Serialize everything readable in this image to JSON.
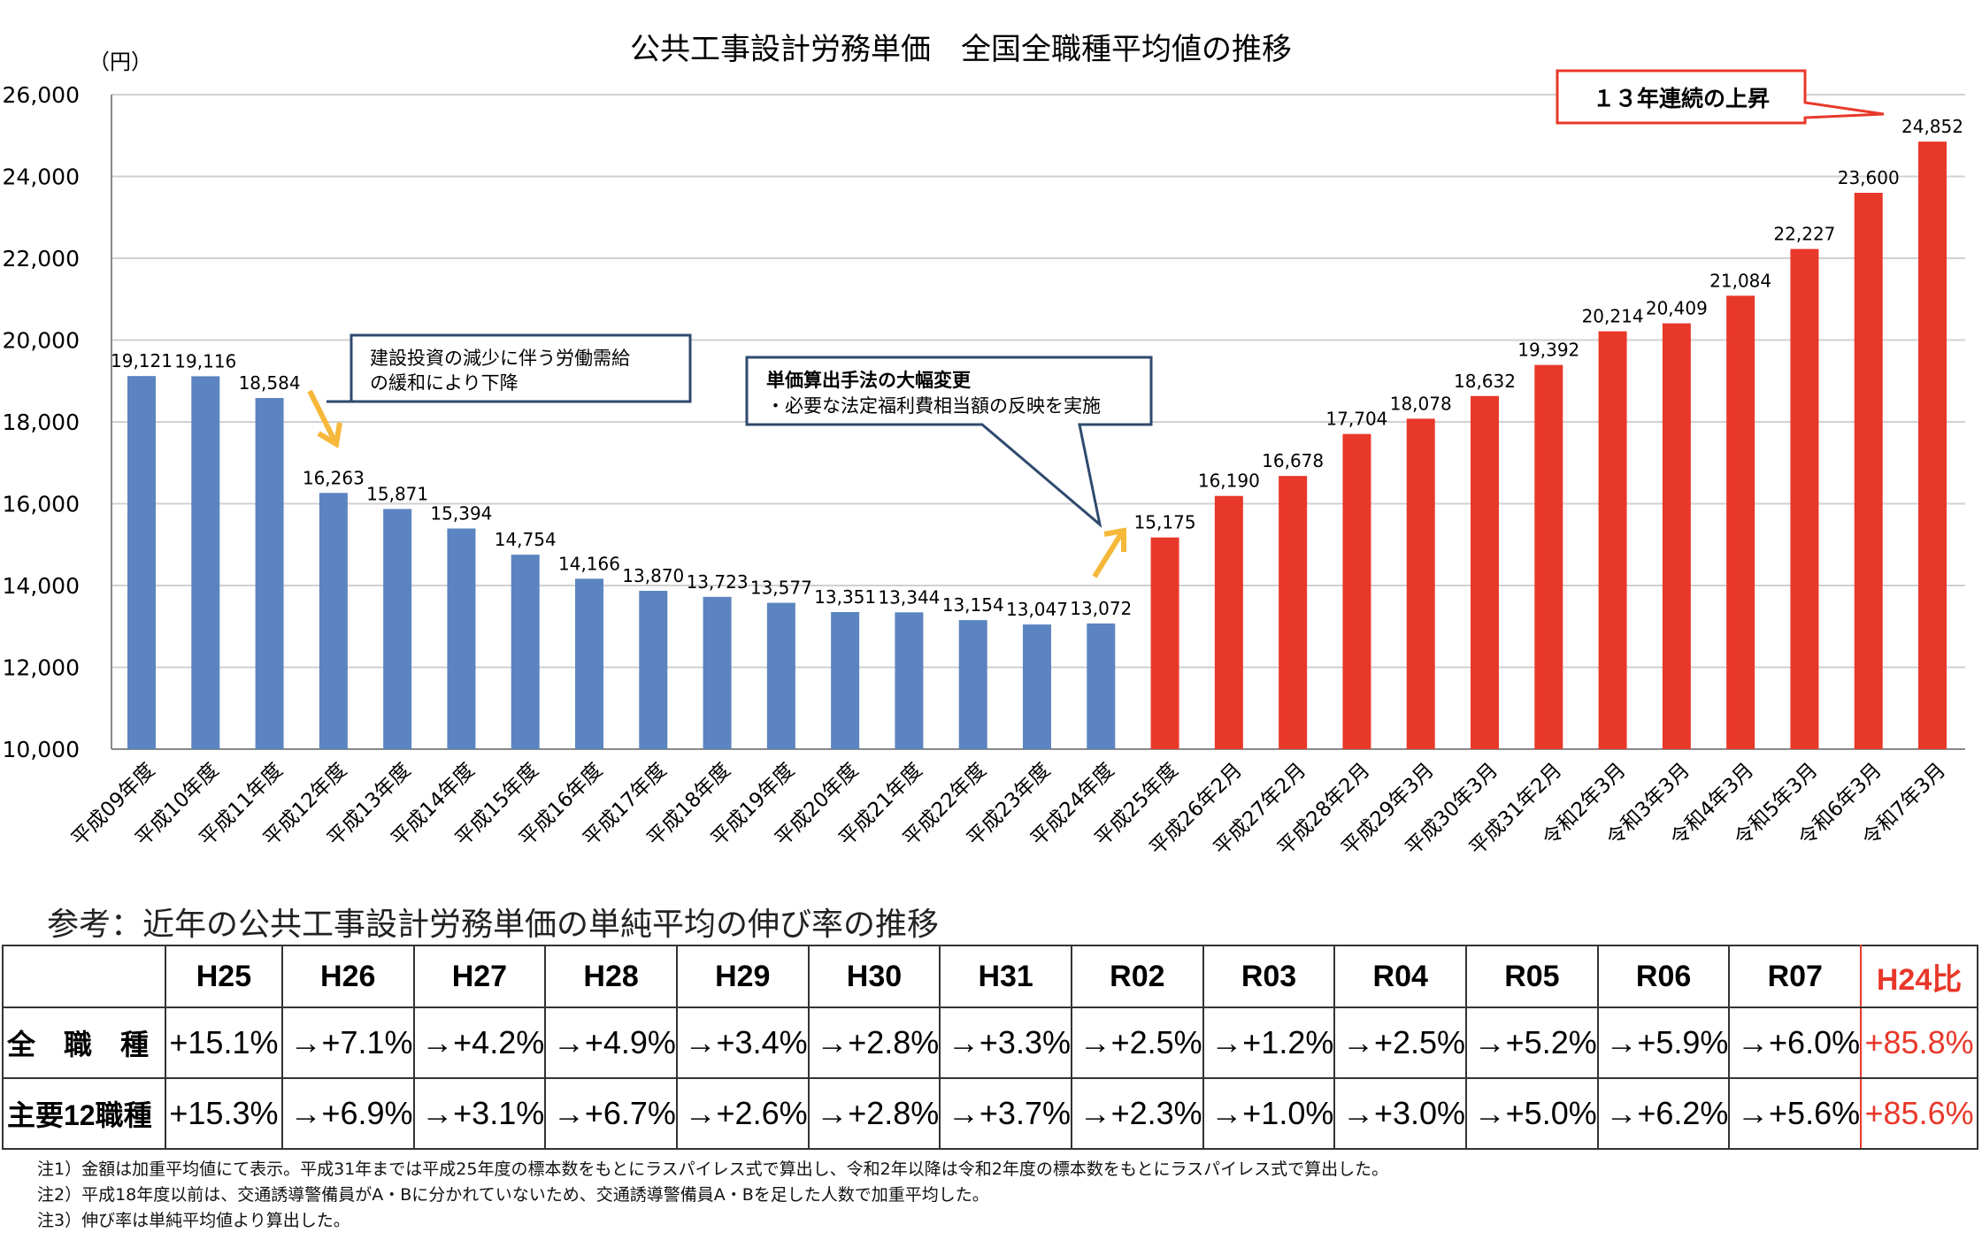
{
  "chart_data": {
    "type": "bar",
    "title": "公共工事設計労務単価　全国全職種平均値の推移",
    "ylabel": "（円）",
    "ylim": [
      10000,
      26000
    ],
    "yticks": [
      "10,000",
      "12,000",
      "14,000",
      "16,000",
      "18,000",
      "20,000",
      "22,000",
      "24,000",
      "26,000"
    ],
    "grid": true,
    "categories": [
      "平成09年度",
      "平成10年度",
      "平成11年度",
      "平成12年度",
      "平成13年度",
      "平成14年度",
      "平成15年度",
      "平成16年度",
      "平成17年度",
      "平成18年度",
      "平成19年度",
      "平成20年度",
      "平成21年度",
      "平成22年度",
      "平成23年度",
      "平成24年度",
      "平成25年度",
      "平成26年2月",
      "平成27年2月",
      "平成28年2月",
      "平成29年3月",
      "平成30年3月",
      "平成31年2月",
      "令和2年3月",
      "令和3年3月",
      "令和4年3月",
      "令和5年3月",
      "令和6年3月",
      "令和7年3月"
    ],
    "values": [
      19121,
      19116,
      18584,
      16263,
      15871,
      15394,
      14754,
      14166,
      13870,
      13723,
      13577,
      13351,
      13344,
      13154,
      13047,
      13072,
      15175,
      16190,
      16678,
      17704,
      18078,
      18632,
      19392,
      20214,
      20409,
      21084,
      22227,
      23600,
      24852
    ],
    "colors": {
      "before": "#5b84c0",
      "after": "#e8382a"
    },
    "annotations": {
      "decline": [
        "建設投資の減少に伴う労働需給",
        "の緩和により下降"
      ],
      "method_title": "単価算出手法の大幅変更",
      "method_text": "・必要な法定福利費相当額の反映を実施",
      "rise": "１３年連続の上昇"
    }
  },
  "reference": {
    "heading": "参考：近年の公共工事設計労務単価の単純平均の伸び率の推移",
    "headers": [
      "H25",
      "H26",
      "H27",
      "H28",
      "H29",
      "H30",
      "H31",
      "R02",
      "R03",
      "R04",
      "R05",
      "R06",
      "R07",
      "H24比"
    ],
    "rows": [
      {
        "label": "全　職　種",
        "values": [
          "+15.1%",
          "+7.1%",
          "+4.2%",
          "+4.9%",
          "+3.4%",
          "+2.8%",
          "+3.3%",
          "+2.5%",
          "+1.2%",
          "+2.5%",
          "+5.2%",
          "+5.9%",
          "+6.0%",
          "+85.8%"
        ]
      },
      {
        "label": "主要12職種",
        "values": [
          "+15.3%",
          "+6.9%",
          "+3.1%",
          "+6.7%",
          "+2.6%",
          "+2.8%",
          "+3.7%",
          "+2.3%",
          "+1.0%",
          "+3.0%",
          "+5.0%",
          "+6.2%",
          "+5.6%",
          "+85.6%"
        ]
      }
    ],
    "arrow": "→"
  },
  "notes": [
    "注1）金額は加重平均値にて表示。平成31年までは平成25年度の標本数をもとにラスパイレス式で算出し、令和2年以降は令和2年度の標本数をもとにラスパイレス式で算出した。",
    "注2）平成18年度以前は、交通誘導警備員がA・Bに分かれていないため、交通誘導警備員A・Bを足した人数で加重平均した。",
    "注3）伸び率は単純平均値より算出した。"
  ]
}
